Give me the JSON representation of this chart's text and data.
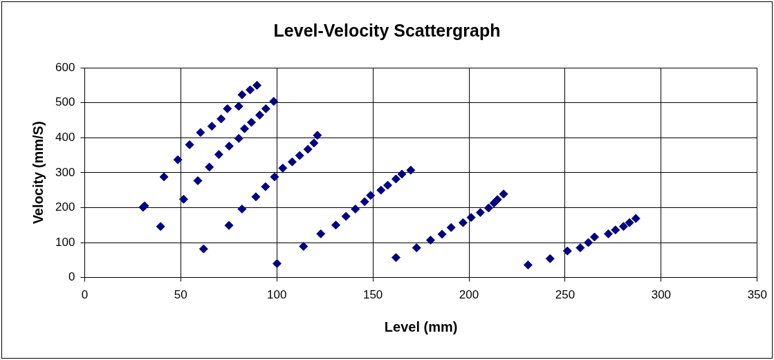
{
  "chart_data": {
    "type": "scatter",
    "title": "Level-Velocity Scattergraph",
    "xlabel": "Level (mm)",
    "ylabel": "Velocity (mm/S)",
    "xlim": [
      0,
      350
    ],
    "xticks": [
      0,
      50,
      100,
      150,
      200,
      250,
      300,
      350
    ],
    "ylim": [
      0,
      600
    ],
    "yticks": [
      0,
      100,
      200,
      300,
      400,
      500,
      600
    ],
    "grid": true,
    "marker": "diamond",
    "series": [
      {
        "color": "#000080",
        "x": [
          30.4,
          31.2,
          39.5,
          41.3,
          48.5,
          54.6,
          60.3,
          66.2,
          71.0,
          74.3,
          80.2,
          81.9,
          86.1,
          89.7,
          51.5,
          58.9,
          61.9,
          64.9,
          69.8,
          75.2,
          80.2,
          83.2,
          86.8,
          91.1,
          94.3,
          98.4,
          75.1,
          81.9,
          89.1,
          94.1,
          98.8,
          100.1,
          103.1,
          108.0,
          111.9,
          116.2,
          119.3,
          121.1,
          113.9,
          122.9,
          130.7,
          136.0,
          140.9,
          145.7,
          148.8,
          154.2,
          157.7,
          162.0,
          165.1,
          169.7,
          162.0,
          172.7,
          180.0,
          186.0,
          190.7,
          196.9,
          201.1,
          205.9,
          210.2,
          213.0,
          214.8,
          218.0,
          230.7,
          242.2,
          251.2,
          257.9,
          262.1,
          265.3,
          272.5,
          276.2,
          280.4,
          283.5,
          286.8
        ],
        "values": [
          201,
          205,
          146,
          288,
          337,
          380,
          415,
          433,
          454,
          483,
          490,
          523,
          537,
          550,
          224,
          277,
          82,
          316,
          352,
          376,
          398,
          426,
          444,
          465,
          483,
          504,
          149,
          196,
          231,
          260,
          288,
          40,
          313,
          331,
          349,
          367,
          385,
          407,
          89,
          125,
          150,
          175,
          196,
          217,
          235,
          250,
          264,
          282,
          296,
          307,
          57,
          85,
          107,
          124,
          143,
          157,
          172,
          186,
          199,
          213,
          223,
          239,
          36,
          54,
          76,
          85,
          100,
          116,
          125,
          136,
          146,
          157,
          169
        ]
      }
    ]
  }
}
